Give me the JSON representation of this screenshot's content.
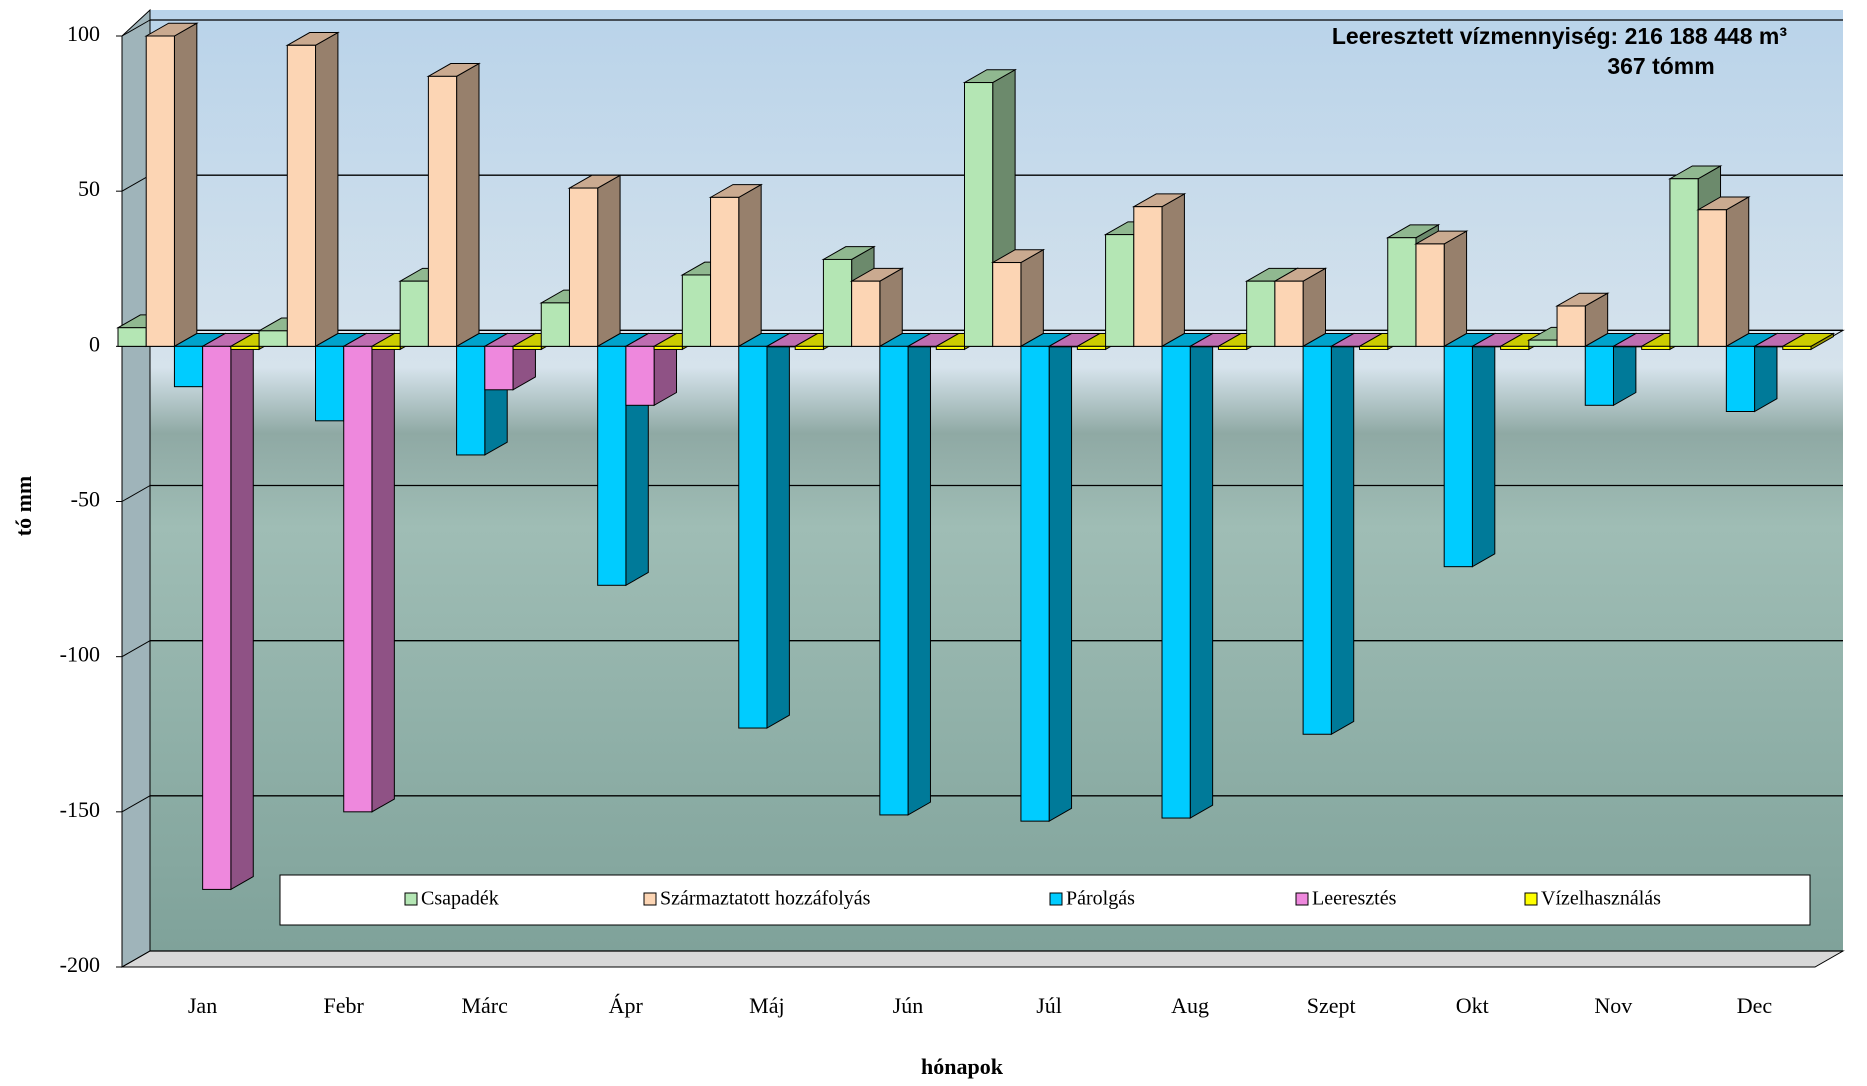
{
  "chart_data": {
    "type": "bar3d",
    "annotations": [
      "Leeresztett vízmennyiség: 216 188 448 m³",
      "367 tómm"
    ],
    "y_label": "tó mm",
    "x_label": "hónapok",
    "categories": [
      "Jan",
      "Febr",
      "Márc",
      "Ápr",
      "Máj",
      "Jún",
      "Júl",
      "Aug",
      "Szept",
      "Okt",
      "Nov",
      "Dec"
    ],
    "series": [
      {
        "name": "Csapadék",
        "color": "#b4e6b4",
        "values": [
          6,
          5,
          21,
          14,
          23,
          28,
          85,
          36,
          21,
          35,
          2,
          54
        ]
      },
      {
        "name": "Származtatott hozzáfolyás",
        "color": "#fcd5b4",
        "values": [
          100,
          97,
          87,
          51,
          48,
          21,
          27,
          45,
          21,
          33,
          13,
          44
        ]
      },
      {
        "name": "Párolgás",
        "color": "#00ccff",
        "values": [
          -13,
          -24,
          -35,
          -77,
          -123,
          -151,
          -153,
          -152,
          -125,
          -71,
          -19,
          -21
        ]
      },
      {
        "name": "Leeresztés",
        "color": "#ee88dd",
        "values": [
          -175,
          -150,
          -14,
          -19,
          0,
          0,
          0,
          0,
          0,
          0,
          0,
          0
        ]
      },
      {
        "name": "Vízelhasználás",
        "color": "#ffff00",
        "values": [
          -1,
          -1,
          -1,
          -1,
          -1,
          -1,
          -1,
          -1,
          -1,
          -1,
          -1,
          -1
        ]
      }
    ],
    "ylim": [
      -200,
      100
    ],
    "yticks": [
      -200,
      -150,
      -100,
      -50,
      0,
      50,
      100
    ],
    "grid": true
  }
}
